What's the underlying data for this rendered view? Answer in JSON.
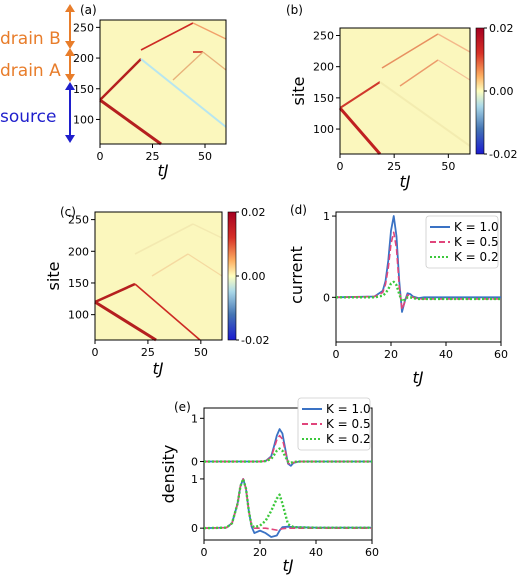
{
  "chart_data": [
    {
      "panel": "(a)",
      "type": "heatmap",
      "xlabel": "tJ",
      "x_ticks": [
        "0",
        "25",
        "50"
      ],
      "y_ticks": [
        "100",
        "150",
        "200",
        "250"
      ],
      "xlim": [
        0,
        60
      ],
      "ylim": [
        60,
        262
      ],
      "annotations": [
        "drain B",
        "drain A",
        "source"
      ],
      "annotation_colors": {
        "drain": "#e87d2b",
        "source": "#1f1fcc"
      }
    },
    {
      "panel": "(b)",
      "type": "heatmap",
      "xlabel": "tJ",
      "ylabel": "site",
      "x_ticks": [
        "0",
        "25",
        "50"
      ],
      "y_ticks": [
        "100",
        "150",
        "200",
        "250"
      ],
      "xlim": [
        0,
        60
      ],
      "ylim": [
        60,
        262
      ],
      "colorbar_ticks": [
        "0.02",
        "0.00",
        "-0.02"
      ],
      "colorbar_range": [
        -0.02,
        0.02
      ]
    },
    {
      "panel": "(c)",
      "type": "heatmap",
      "xlabel": "tJ",
      "ylabel": "site",
      "x_ticks": [
        "0",
        "25",
        "50"
      ],
      "y_ticks": [
        "100",
        "150",
        "200",
        "250"
      ],
      "xlim": [
        0,
        60
      ],
      "ylim": [
        60,
        262
      ],
      "colorbar_ticks": [
        "0.02",
        "0.00",
        "-0.02"
      ],
      "colorbar_range": [
        -0.02,
        0.02
      ]
    },
    {
      "panel": "(d)",
      "type": "line",
      "xlabel": "tJ",
      "ylabel": "current",
      "xlim": [
        0,
        60
      ],
      "ylim": [
        -0.55,
        1.05
      ],
      "x_ticks": [
        "0",
        "20",
        "40",
        "60"
      ],
      "y_ticks": [
        "0",
        "1"
      ],
      "legend_position": "top-right",
      "series": [
        {
          "name": "K = 1.0",
          "color": "#3a72c4",
          "dash": "solid",
          "x": [
            0,
            14,
            17,
            18,
            19,
            20,
            21,
            22,
            23,
            24,
            25,
            26,
            27,
            28,
            30,
            32,
            35,
            40,
            60
          ],
          "y": [
            0,
            0.01,
            0.08,
            0.2,
            0.45,
            0.82,
            1.0,
            0.75,
            0.2,
            -0.18,
            -0.05,
            0.05,
            0.04,
            0.01,
            -0.01,
            0.0,
            0.0,
            0.0,
            0.0
          ]
        },
        {
          "name": "K = 0.5",
          "color": "#e0457b",
          "dash": "dashed",
          "x": [
            0,
            14,
            17,
            18,
            19,
            20,
            21,
            22,
            23,
            24,
            25,
            26,
            27,
            28,
            30,
            32,
            35,
            40,
            60
          ],
          "y": [
            0,
            0.01,
            0.06,
            0.16,
            0.36,
            0.66,
            0.8,
            0.6,
            0.14,
            -0.15,
            -0.06,
            0.03,
            0.02,
            0.0,
            -0.02,
            -0.02,
            -0.02,
            -0.02,
            -0.02
          ]
        },
        {
          "name": "K = 0.2",
          "color": "#3cc83c",
          "dash": "dotted",
          "x": [
            0,
            14,
            17,
            18,
            19,
            20,
            21,
            22,
            23,
            24,
            25,
            26,
            27,
            28,
            30,
            32,
            35,
            40,
            60
          ],
          "y": [
            0,
            0.0,
            0.02,
            0.05,
            0.1,
            0.17,
            0.19,
            0.15,
            0.04,
            -0.05,
            -0.03,
            0.0,
            0.0,
            -0.01,
            -0.02,
            -0.02,
            -0.02,
            -0.02,
            -0.02
          ]
        }
      ]
    },
    {
      "panel": "(e)",
      "type": "line",
      "xlabel": "tJ",
      "ylabel": "density",
      "xlim": [
        0,
        60
      ],
      "x_ticks": [
        "0",
        "20",
        "40",
        "60"
      ],
      "upper_y_ticks": [
        "0",
        "1"
      ],
      "lower_y_ticks": [
        "0",
        "1"
      ],
      "upper_ylim": [
        -0.15,
        1.1
      ],
      "lower_ylim": [
        -0.2,
        1.1
      ],
      "legend_position": "top-right",
      "upper_series": [
        {
          "name": "K = 1.0",
          "color": "#3a72c4",
          "dash": "solid",
          "x": [
            0,
            20,
            22,
            24,
            25,
            26,
            27,
            28,
            29,
            30,
            31,
            32,
            34,
            36,
            60
          ],
          "y": [
            0,
            0,
            0.01,
            0.12,
            0.35,
            0.6,
            0.75,
            0.65,
            0.3,
            -0.05,
            -0.1,
            -0.03,
            0.0,
            0.0,
            0.0
          ]
        },
        {
          "name": "K = 0.5",
          "color": "#e0457b",
          "dash": "dashed",
          "x": [
            0,
            20,
            22,
            24,
            25,
            26,
            27,
            28,
            29,
            30,
            31,
            32,
            34,
            36,
            60
          ],
          "y": [
            0,
            0,
            0.01,
            0.1,
            0.3,
            0.5,
            0.6,
            0.52,
            0.25,
            -0.03,
            -0.08,
            -0.02,
            0.0,
            0.0,
            0.0
          ]
        },
        {
          "name": "K = 0.2",
          "color": "#3cc83c",
          "dash": "dotted",
          "x": [
            0,
            20,
            22,
            24,
            25,
            26,
            27,
            28,
            29,
            30,
            31,
            32,
            34,
            36,
            60
          ],
          "y": [
            0,
            0,
            0.01,
            0.06,
            0.15,
            0.25,
            0.3,
            0.25,
            0.12,
            0.0,
            -0.03,
            -0.01,
            0.0,
            0.0,
            0.0
          ]
        }
      ],
      "lower_series": [
        {
          "name": "K = 1.0",
          "color": "#3a72c4",
          "dash": "solid",
          "x": [
            0,
            8,
            10,
            12,
            13,
            14,
            15,
            16,
            17,
            18,
            20,
            22,
            24,
            26,
            27,
            28,
            30,
            32,
            40,
            60
          ],
          "y": [
            0,
            0.01,
            0.1,
            0.5,
            0.85,
            1.0,
            0.8,
            0.35,
            0.03,
            -0.1,
            -0.05,
            -0.1,
            -0.18,
            -0.15,
            -0.05,
            0.02,
            0.03,
            0.02,
            0.01,
            0.01
          ]
        },
        {
          "name": "K = 0.5",
          "color": "#e0457b",
          "dash": "dashed",
          "x": [
            0,
            8,
            10,
            12,
            13,
            14,
            15,
            16,
            17,
            18,
            20,
            22,
            24,
            26,
            27,
            28,
            30,
            32,
            40,
            60
          ],
          "y": [
            0,
            0.01,
            0.1,
            0.5,
            0.85,
            1.0,
            0.8,
            0.35,
            0.05,
            0.0,
            0.0,
            0.0,
            -0.02,
            -0.04,
            -0.03,
            -0.01,
            0.0,
            0.0,
            0.0,
            0.0
          ]
        },
        {
          "name": "K = 0.2",
          "color": "#3cc83c",
          "dash": "dotted",
          "x": [
            0,
            8,
            10,
            12,
            13,
            14,
            15,
            16,
            17,
            18,
            20,
            22,
            24,
            26,
            27,
            28,
            30,
            32,
            40,
            60
          ],
          "y": [
            0,
            0.01,
            0.1,
            0.5,
            0.85,
            1.0,
            0.8,
            0.35,
            0.05,
            0.02,
            0.05,
            0.15,
            0.35,
            0.6,
            0.68,
            0.5,
            0.08,
            0.02,
            0.01,
            0.01
          ]
        }
      ]
    }
  ]
}
